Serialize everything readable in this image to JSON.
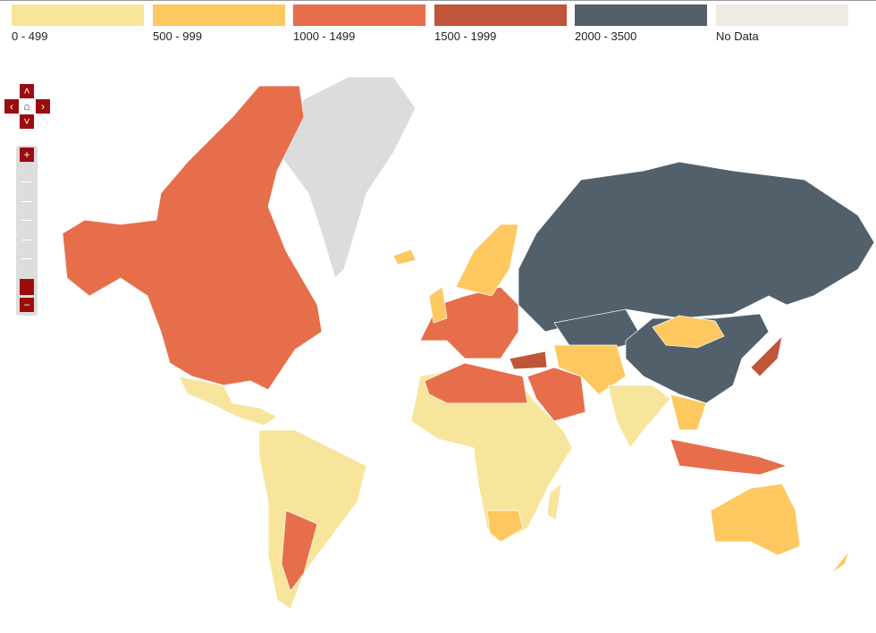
{
  "legend": [
    {
      "label": "0 - 499",
      "color": "#f7e59c"
    },
    {
      "label": "500 - 999",
      "color": "#fdc85f"
    },
    {
      "label": "1000 - 1499",
      "color": "#e76e4a"
    },
    {
      "label": "1500 - 1999",
      "color": "#c0553a"
    },
    {
      "label": "2000 - 3500",
      "color": "#52606b"
    },
    {
      "label": "No Data",
      "color": "#edebe2"
    }
  ]
}
